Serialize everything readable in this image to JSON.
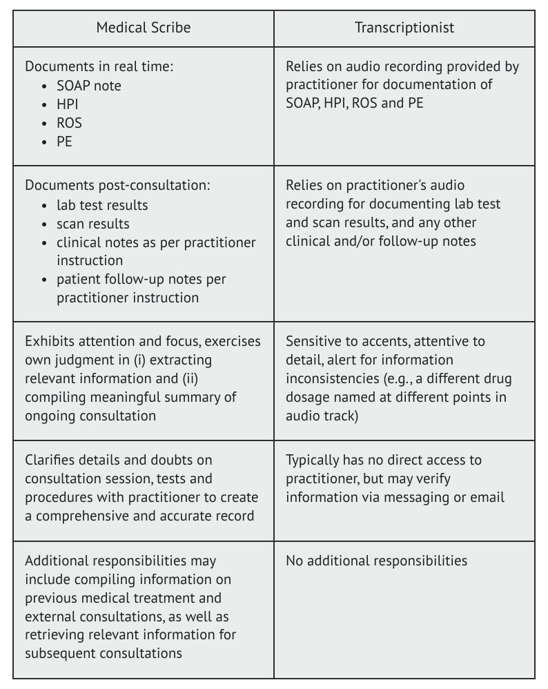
{
  "table": {
    "background_color": "#ebecec",
    "border_color": "#2c2f30",
    "text_color": "#1e2122",
    "header_fontsize": 22,
    "body_fontsize": 21,
    "columns": [
      {
        "label": "Medical Scribe"
      },
      {
        "label": "Transcriptionist"
      }
    ],
    "rows": [
      {
        "left": {
          "lead": "Documents in real time:",
          "bullets": [
            "SOAP note",
            "HPI",
            "ROS",
            "PE"
          ]
        },
        "right": {
          "text": "Relies on audio recording provided by practitioner for documentation of SOAP, HPI, ROS and PE"
        }
      },
      {
        "left": {
          "lead": "Documents post-consultation:",
          "bullets": [
            "lab test results",
            "scan results",
            "clinical notes as per practitioner instruction",
            "patient follow-up notes per practitioner instruction"
          ]
        },
        "right": {
          "text": "Relies on practitioner's audio recording for documenting lab test and scan results, and any other clinical and/or follow-up notes"
        }
      },
      {
        "left": {
          "text": "Exhibits attention and focus, exercises own judgment in (i) extracting relevant information and (ii) compiling meaningful summary of ongoing consultation"
        },
        "right": {
          "text": "Sensitive to accents, attentive to detail, alert for information inconsistencies (e.g., a different drug dosage named at different points in audio track)"
        }
      },
      {
        "left": {
          "text": "Clarifies details and doubts on consultation session, tests and procedures with practitioner to create a comprehensive and accurate record"
        },
        "right": {
          "text": "Typically has no direct access to practitioner, but may verify information via messaging or email"
        }
      },
      {
        "left": {
          "text": "Additional responsibilities may include compiling information on previous medical treatment and external consultations, as well as retrieving relevant information for subsequent consultations"
        },
        "right": {
          "text": "No additional responsibilities"
        }
      }
    ]
  }
}
